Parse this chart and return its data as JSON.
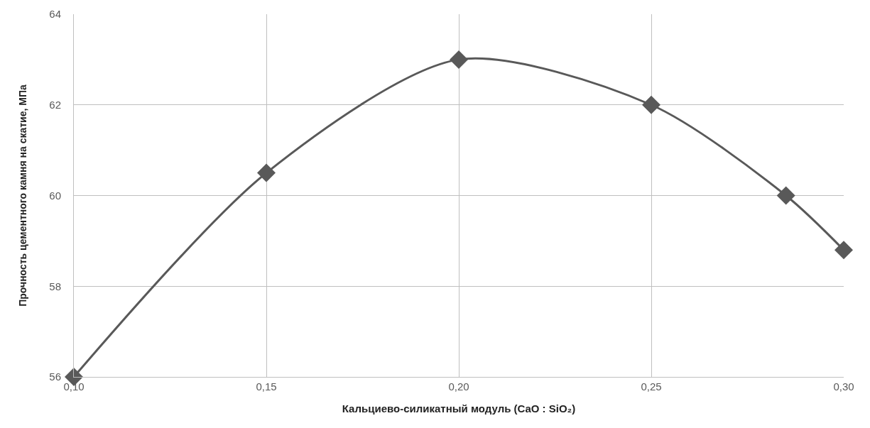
{
  "chart_data": {
    "type": "line",
    "xlabel": "Кальциево-силикатный модуль (CaO : SiO₂)",
    "ylabel": "Прочность цементного камня на скатие, МПа",
    "x": [
      0.1,
      0.15,
      0.2,
      0.25,
      0.285,
      0.3
    ],
    "series": [
      {
        "color": "#595959",
        "values": [
          56,
          60.5,
          63,
          62,
          60,
          58.8
        ]
      }
    ],
    "xlim": [
      0.1,
      0.3
    ],
    "xticks": [
      {
        "value": 0.1,
        "label": "0,10"
      },
      {
        "value": 0.15,
        "label": "0,15"
      },
      {
        "value": 0.2,
        "label": "0,20"
      },
      {
        "value": 0.25,
        "label": "0,25"
      },
      {
        "value": 0.3,
        "label": "0,30"
      }
    ],
    "ylim": [
      56,
      64
    ],
    "yticks": [
      56,
      58,
      60,
      62,
      64
    ],
    "grid": true,
    "legend": false,
    "marker": "diamond",
    "line_style": "solid"
  }
}
